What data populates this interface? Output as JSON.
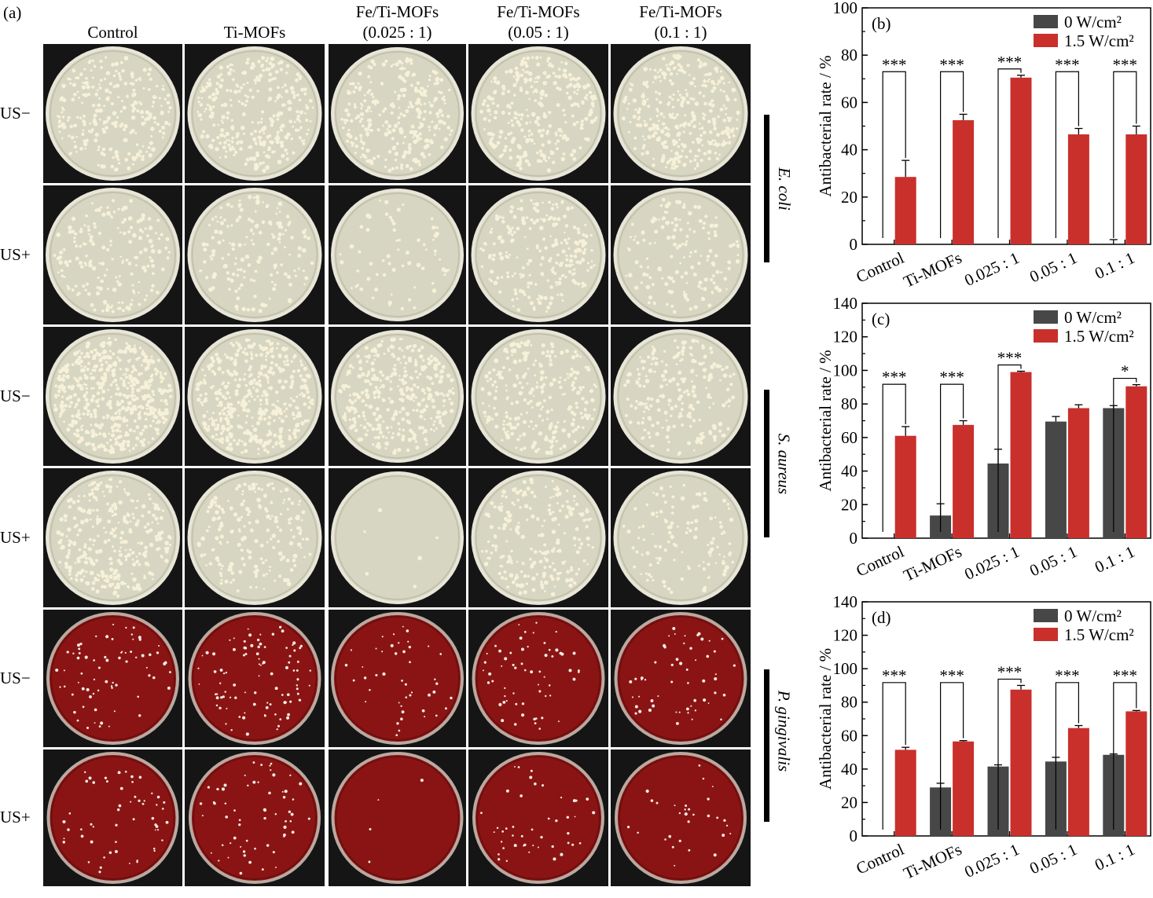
{
  "panel_a": {
    "label": "(a)",
    "columns": [
      "Control",
      "Ti-MOFs",
      "Fe/Ti-MOFs\n(0.025 : 1)",
      "Fe/Ti-MOFs\n(0.05 : 1)",
      "Fe/Ti-MOFs\n(0.1 : 1)"
    ],
    "rows": [
      "US−",
      "US+",
      "US−",
      "US+",
      "US−",
      "US+"
    ],
    "species": [
      "E. coli",
      "S. aureus",
      "P. gingivalis"
    ],
    "colony_counts": [
      [
        260,
        300,
        280,
        290,
        330
      ],
      [
        180,
        160,
        65,
        230,
        150
      ],
      [
        520,
        420,
        340,
        260,
        210
      ],
      [
        300,
        190,
        6,
        220,
        120
      ],
      [
        70,
        95,
        45,
        60,
        55
      ],
      [
        55,
        60,
        4,
        45,
        30
      ]
    ],
    "colors": {
      "lb_agar": "#d7d6c2",
      "lb_colony": "#f6f1d8",
      "blood_agar": "#8a1414",
      "blood_colony": "#f2ece4",
      "backdrop": "#151515"
    }
  },
  "chart_data": [
    {
      "type": "bar",
      "panel": "(b)",
      "categories": [
        "Control",
        "Ti-MOFs",
        "0.025 : 1",
        "0.05 : 1",
        "0.1 : 1"
      ],
      "series": [
        {
          "name": "0 W/cm²",
          "color": "#474747",
          "values": [
            0,
            0,
            0,
            0,
            0
          ],
          "errors": [
            0,
            0,
            0,
            0,
            2
          ]
        },
        {
          "name": "1.5 W/cm²",
          "color": "#c9302c",
          "values": [
            28.5,
            52.5,
            70.5,
            46.5,
            46.5
          ],
          "errors": [
            7,
            2.5,
            1,
            2.5,
            3.5
          ]
        }
      ],
      "significance": [
        "***",
        "***",
        "***",
        "***",
        "***"
      ],
      "ylabel": "Antibacterial rate / %",
      "ylim": [
        0,
        100
      ],
      "yticks": [
        "0",
        "20",
        "40",
        "60",
        "80",
        "100"
      ]
    },
    {
      "type": "bar",
      "panel": "(c)",
      "categories": [
        "Control",
        "Ti-MOFs",
        "0.025 : 1",
        "0.05 : 1",
        "0.1 : 1"
      ],
      "series": [
        {
          "name": "0 W/cm²",
          "color": "#474747",
          "values": [
            0,
            13.5,
            44.5,
            69.5,
            77.5
          ],
          "errors": [
            0,
            7,
            8.5,
            3,
            1.5
          ]
        },
        {
          "name": "1.5 W/cm²",
          "color": "#c9302c",
          "values": [
            61,
            67.5,
            99,
            77.5,
            90.5
          ],
          "errors": [
            5.5,
            2.5,
            0.5,
            2,
            1
          ]
        }
      ],
      "significance": [
        "***",
        "***",
        "***",
        "",
        "*"
      ],
      "ylabel": "Antibacterial rate / %",
      "ylim": [
        0,
        140
      ],
      "yticks": [
        "0",
        "20",
        "40",
        "60",
        "80",
        "100",
        "120",
        "140"
      ]
    },
    {
      "type": "bar",
      "panel": "(d)",
      "categories": [
        "Control",
        "Ti-MOFs",
        "0.025 : 1",
        "0.05 : 1",
        "0.1 : 1"
      ],
      "series": [
        {
          "name": "0 W/cm²",
          "color": "#474747",
          "values": [
            0,
            29,
            41.5,
            44.5,
            48.5
          ],
          "errors": [
            0,
            2.5,
            1,
            2.5,
            0.5
          ]
        },
        {
          "name": "1.5 W/cm²",
          "color": "#c9302c",
          "values": [
            51.5,
            56.5,
            87.5,
            64.5,
            74.5
          ],
          "errors": [
            1.5,
            0.5,
            2.5,
            1.5,
            0.5
          ]
        }
      ],
      "significance": [
        "***",
        "***",
        "***",
        "***",
        "***"
      ],
      "ylabel": "Antibacterial rate / %",
      "ylim": [
        0,
        140
      ],
      "yticks": [
        "0",
        "20",
        "40",
        "60",
        "80",
        "100",
        "120",
        "140"
      ]
    }
  ]
}
